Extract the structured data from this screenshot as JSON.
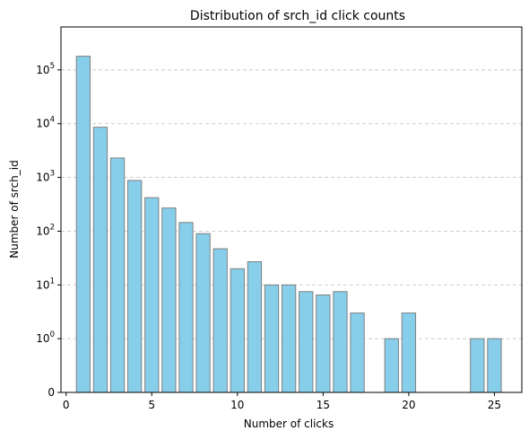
{
  "chart_data": {
    "type": "bar",
    "title": "Distribution of srch_id click counts",
    "xlabel": "Number of clicks",
    "ylabel": "Number of srch_id",
    "yscale": "symlog",
    "xlim": [
      -0.3,
      26.6
    ],
    "x": [
      1,
      2,
      3,
      4,
      5,
      6,
      7,
      8,
      9,
      10,
      11,
      12,
      13,
      14,
      15,
      16,
      17,
      19,
      20,
      24,
      25
    ],
    "values": [
      180000,
      8600,
      2300,
      880,
      420,
      270,
      145,
      90,
      47,
      20,
      27,
      10,
      10,
      7.5,
      6.5,
      7.5,
      3,
      1,
      3,
      1,
      1
    ],
    "x_ticks": [
      {
        "value": 0,
        "label": "0"
      },
      {
        "value": 5,
        "label": "5"
      },
      {
        "value": 10,
        "label": "10"
      },
      {
        "value": 15,
        "label": "15"
      },
      {
        "value": 20,
        "label": "20"
      },
      {
        "value": 25,
        "label": "25"
      }
    ],
    "y_ticks": [
      {
        "value": 0,
        "base": "0",
        "exp": ""
      },
      {
        "value": 1,
        "base": "10",
        "exp": "0"
      },
      {
        "value": 10,
        "base": "10",
        "exp": "1"
      },
      {
        "value": 100,
        "base": "10",
        "exp": "2"
      },
      {
        "value": 1000,
        "base": "10",
        "exp": "3"
      },
      {
        "value": 10000,
        "base": "10",
        "exp": "4"
      },
      {
        "value": 100000,
        "base": "10",
        "exp": "5"
      }
    ],
    "grid": "y",
    "colors": {
      "bar_fill": "#87ceeb",
      "bar_edge": "#808080"
    }
  }
}
